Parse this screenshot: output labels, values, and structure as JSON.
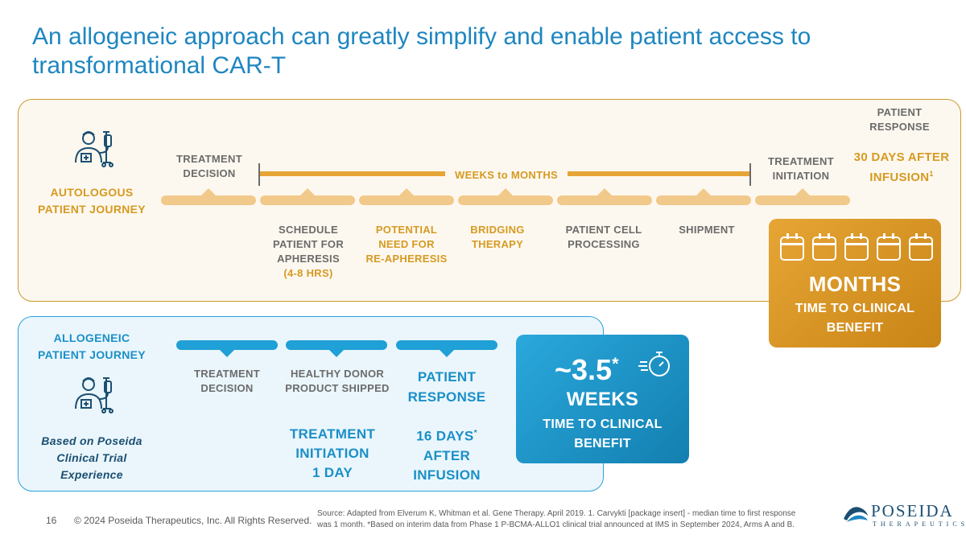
{
  "title": "An allogeneic approach can greatly simplify and enable patient access to transformational CAR-T",
  "autologous": {
    "label_line1": "AUTOLOGOUS",
    "label_line2": "PATIENT JOURNEY",
    "treatment_decision_1": "TREATMENT",
    "treatment_decision_2": "DECISION",
    "span_label": "WEEKS to MONTHS",
    "treatment_initiation_1": "TREATMENT",
    "treatment_initiation_2": "INITIATION",
    "patient_response_1": "PATIENT",
    "patient_response_2": "RESPONSE",
    "days_after_1": "30 DAYS AFTER",
    "days_after_2": "INFUSION",
    "days_after_sup": "1",
    "steps": [
      {
        "l1": "SCHEDULE",
        "l2": "PATIENT FOR",
        "l3": "APHERESIS",
        "l4": "(4-8 HRS)"
      },
      {
        "l1": "POTENTIAL",
        "l2": "NEED FOR",
        "l3": "RE-APHERESIS"
      },
      {
        "l1": "BRIDGING",
        "l2": "THERAPY"
      },
      {
        "l1": "PATIENT CELL",
        "l2": "PROCESSING"
      },
      {
        "l1": "SHIPMENT"
      }
    ],
    "months_box": {
      "big": "MONTHS",
      "sub1": "TIME TO CLINICAL",
      "sub2": "BENEFIT"
    }
  },
  "allogeneic": {
    "label_line1": "ALLOGENEIC",
    "label_line2": "PATIENT JOURNEY",
    "note_line1": "Based on Poseida",
    "note_line2": "Clinical Trial",
    "note_line3": "Experience",
    "treatment_decision_1": "TREATMENT",
    "treatment_decision_2": "DECISION",
    "healthy_donor_1": "HEALTHY DONOR",
    "healthy_donor_2": "PRODUCT SHIPPED",
    "patient_response_1": "PATIENT",
    "patient_response_2": "RESPONSE",
    "treatment_initiation_1": "TREATMENT",
    "treatment_initiation_2": "INITIATION",
    "treatment_initiation_3": "1 DAY",
    "days_1": "16 DAYS",
    "days_sup": "*",
    "days_2": "AFTER",
    "days_3": "INFUSION",
    "weeks_box": {
      "big": "~3.5",
      "star": "*",
      "unit": "WEEKS",
      "sub1": "TIME TO CLINICAL",
      "sub2": "BENEFIT"
    }
  },
  "footer": {
    "page_number": "16",
    "copyright": "© 2024 Poseida Therapeutics, Inc. All Rights Reserved.",
    "source_line1": "Source: Adapted from Elverum K, Whitman et al. Gene Therapy. April 2019. 1. Carvykti [package insert] - median time to first response",
    "source_line2": "was 1 month. *Based on interim data from Phase 1 P-BCMA-ALLO1 clinical trial announced at IMS in September 2024, Arms A and B.",
    "logo_name": "POSEIDA",
    "logo_sub": "THERAPEUTICS"
  },
  "colors": {
    "blue": "#1e86c0",
    "gold": "#d69a22",
    "gray": "#6b6b6b"
  }
}
